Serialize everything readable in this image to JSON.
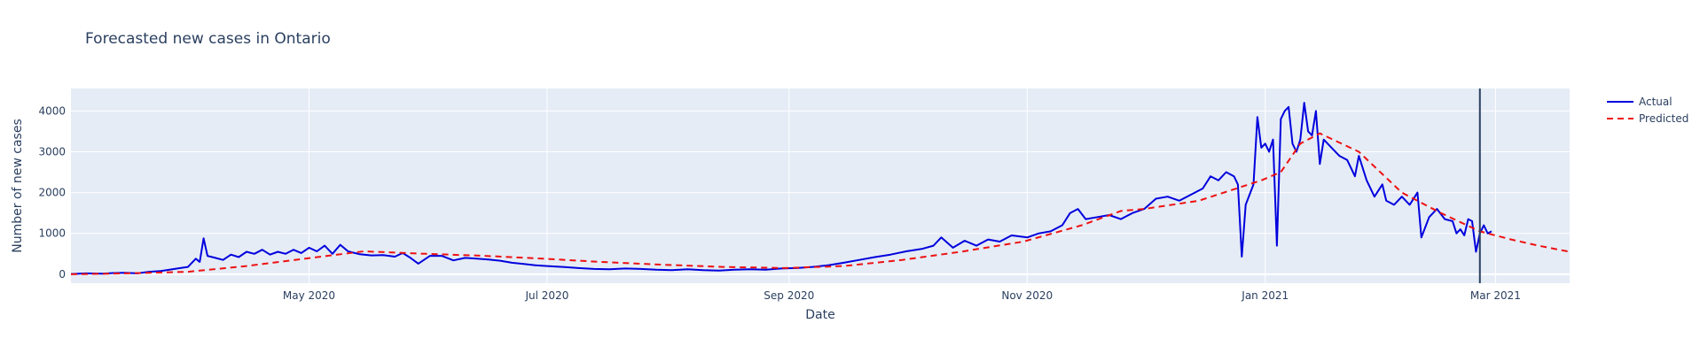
{
  "chart_data": {
    "type": "line",
    "title": "Forecasted new cases in Ontario",
    "xlabel": "Date",
    "ylabel": "Number of new cases",
    "x_range": [
      "2020-03-01",
      "2021-03-20"
    ],
    "ylim": [
      -220,
      4550
    ],
    "x_ticks": [
      {
        "date": "2020-05-01",
        "label": "May 2020"
      },
      {
        "date": "2020-07-01",
        "label": "Jul 2020"
      },
      {
        "date": "2020-09-01",
        "label": "Sep 2020"
      },
      {
        "date": "2020-11-01",
        "label": "Nov 2020"
      },
      {
        "date": "2021-01-01",
        "label": "Jan 2021"
      },
      {
        "date": "2021-03-01",
        "label": "Mar 2021"
      }
    ],
    "y_ticks": [
      0,
      1000,
      2000,
      3000,
      4000
    ],
    "grid": true,
    "legend_position": "top-right",
    "forecast_start": "2021-02-25",
    "series": [
      {
        "name": "Actual",
        "color": "#0000dd",
        "style": "solid",
        "points": [
          [
            "2020-03-01",
            5
          ],
          [
            "2020-03-05",
            20
          ],
          [
            "2020-03-09",
            15
          ],
          [
            "2020-03-12",
            30
          ],
          [
            "2020-03-15",
            35
          ],
          [
            "2020-03-18",
            20
          ],
          [
            "2020-03-21",
            60
          ],
          [
            "2020-03-24",
            80
          ],
          [
            "2020-03-27",
            120
          ],
          [
            "2020-03-29",
            150
          ],
          [
            "2020-03-31",
            180
          ],
          [
            "2020-04-02",
            380
          ],
          [
            "2020-04-03",
            300
          ],
          [
            "2020-04-04",
            880
          ],
          [
            "2020-04-05",
            450
          ],
          [
            "2020-04-07",
            400
          ],
          [
            "2020-04-09",
            350
          ],
          [
            "2020-04-11",
            480
          ],
          [
            "2020-04-13",
            420
          ],
          [
            "2020-04-15",
            550
          ],
          [
            "2020-04-17",
            500
          ],
          [
            "2020-04-19",
            600
          ],
          [
            "2020-04-21",
            480
          ],
          [
            "2020-04-23",
            550
          ],
          [
            "2020-04-25",
            500
          ],
          [
            "2020-04-27",
            600
          ],
          [
            "2020-04-29",
            520
          ],
          [
            "2020-05-01",
            650
          ],
          [
            "2020-05-03",
            560
          ],
          [
            "2020-05-05",
            700
          ],
          [
            "2020-05-07",
            500
          ],
          [
            "2020-05-09",
            720
          ],
          [
            "2020-05-11",
            560
          ],
          [
            "2020-05-14",
            490
          ],
          [
            "2020-05-17",
            460
          ],
          [
            "2020-05-20",
            470
          ],
          [
            "2020-05-23",
            430
          ],
          [
            "2020-05-25",
            520
          ],
          [
            "2020-05-27",
            400
          ],
          [
            "2020-05-29",
            260
          ],
          [
            "2020-06-01",
            450
          ],
          [
            "2020-06-04",
            450
          ],
          [
            "2020-06-07",
            340
          ],
          [
            "2020-06-10",
            400
          ],
          [
            "2020-06-13",
            380
          ],
          [
            "2020-06-16",
            360
          ],
          [
            "2020-06-19",
            330
          ],
          [
            "2020-06-22",
            280
          ],
          [
            "2020-06-25",
            250
          ],
          [
            "2020-06-28",
            220
          ],
          [
            "2020-07-01",
            200
          ],
          [
            "2020-07-05",
            180
          ],
          [
            "2020-07-09",
            150
          ],
          [
            "2020-07-13",
            130
          ],
          [
            "2020-07-17",
            120
          ],
          [
            "2020-07-21",
            140
          ],
          [
            "2020-07-25",
            130
          ],
          [
            "2020-07-29",
            110
          ],
          [
            "2020-08-02",
            100
          ],
          [
            "2020-08-06",
            120
          ],
          [
            "2020-08-10",
            100
          ],
          [
            "2020-08-14",
            90
          ],
          [
            "2020-08-18",
            110
          ],
          [
            "2020-08-22",
            120
          ],
          [
            "2020-08-26",
            110
          ],
          [
            "2020-08-30",
            140
          ],
          [
            "2020-09-03",
            150
          ],
          [
            "2020-09-07",
            180
          ],
          [
            "2020-09-11",
            220
          ],
          [
            "2020-09-15",
            280
          ],
          [
            "2020-09-19",
            350
          ],
          [
            "2020-09-23",
            420
          ],
          [
            "2020-09-27",
            480
          ],
          [
            "2020-10-01",
            560
          ],
          [
            "2020-10-05",
            620
          ],
          [
            "2020-10-08",
            700
          ],
          [
            "2020-10-10",
            900
          ],
          [
            "2020-10-13",
            650
          ],
          [
            "2020-10-16",
            820
          ],
          [
            "2020-10-19",
            700
          ],
          [
            "2020-10-22",
            850
          ],
          [
            "2020-10-25",
            800
          ],
          [
            "2020-10-28",
            950
          ],
          [
            "2020-11-01",
            900
          ],
          [
            "2020-11-04",
            1000
          ],
          [
            "2020-11-07",
            1050
          ],
          [
            "2020-11-10",
            1200
          ],
          [
            "2020-11-12",
            1500
          ],
          [
            "2020-11-14",
            1600
          ],
          [
            "2020-11-16",
            1350
          ],
          [
            "2020-11-19",
            1400
          ],
          [
            "2020-11-22",
            1450
          ],
          [
            "2020-11-25",
            1350
          ],
          [
            "2020-11-28",
            1500
          ],
          [
            "2020-12-01",
            1600
          ],
          [
            "2020-12-04",
            1850
          ],
          [
            "2020-12-07",
            1900
          ],
          [
            "2020-12-10",
            1800
          ],
          [
            "2020-12-13",
            1950
          ],
          [
            "2020-12-16",
            2100
          ],
          [
            "2020-12-18",
            2400
          ],
          [
            "2020-12-20",
            2300
          ],
          [
            "2020-12-22",
            2500
          ],
          [
            "2020-12-24",
            2400
          ],
          [
            "2020-12-25",
            2200
          ],
          [
            "2020-12-26",
            430
          ],
          [
            "2020-12-27",
            1700
          ],
          [
            "2020-12-29",
            2200
          ],
          [
            "2020-12-30",
            3850
          ],
          [
            "2020-12-31",
            3100
          ],
          [
            "2021-01-01",
            3200
          ],
          [
            "2021-01-02",
            3000
          ],
          [
            "2021-01-03",
            3300
          ],
          [
            "2021-01-04",
            700
          ],
          [
            "2021-01-05",
            3800
          ],
          [
            "2021-01-06",
            4000
          ],
          [
            "2021-01-07",
            4100
          ],
          [
            "2021-01-08",
            3200
          ],
          [
            "2021-01-09",
            3000
          ],
          [
            "2021-01-10",
            3300
          ],
          [
            "2021-01-11",
            4200
          ],
          [
            "2021-01-12",
            3500
          ],
          [
            "2021-01-13",
            3400
          ],
          [
            "2021-01-14",
            4000
          ],
          [
            "2021-01-15",
            2700
          ],
          [
            "2021-01-16",
            3300
          ],
          [
            "2021-01-18",
            3100
          ],
          [
            "2021-01-20",
            2900
          ],
          [
            "2021-01-22",
            2800
          ],
          [
            "2021-01-24",
            2400
          ],
          [
            "2021-01-25",
            2900
          ],
          [
            "2021-01-27",
            2300
          ],
          [
            "2021-01-29",
            1900
          ],
          [
            "2021-01-31",
            2200
          ],
          [
            "2021-02-01",
            1800
          ],
          [
            "2021-02-03",
            1700
          ],
          [
            "2021-02-05",
            1900
          ],
          [
            "2021-02-07",
            1700
          ],
          [
            "2021-02-09",
            2000
          ],
          [
            "2021-02-10",
            900
          ],
          [
            "2021-02-12",
            1400
          ],
          [
            "2021-02-14",
            1600
          ],
          [
            "2021-02-16",
            1350
          ],
          [
            "2021-02-18",
            1300
          ],
          [
            "2021-02-19",
            1000
          ],
          [
            "2021-02-20",
            1100
          ],
          [
            "2021-02-21",
            950
          ],
          [
            "2021-02-22",
            1350
          ],
          [
            "2021-02-23",
            1300
          ],
          [
            "2021-02-24",
            550
          ],
          [
            "2021-02-25",
            1000
          ],
          [
            "2021-02-26",
            1200
          ],
          [
            "2021-02-27",
            1000
          ],
          [
            "2021-02-28",
            1050
          ]
        ]
      },
      {
        "name": "Predicted",
        "color": "#ee1111",
        "style": "dashed",
        "points": [
          [
            "2020-03-01",
            0
          ],
          [
            "2020-03-15",
            20
          ],
          [
            "2020-03-31",
            60
          ],
          [
            "2020-04-15",
            200
          ],
          [
            "2020-04-30",
            380
          ],
          [
            "2020-05-15",
            560
          ],
          [
            "2020-05-31",
            500
          ],
          [
            "2020-06-15",
            450
          ],
          [
            "2020-06-30",
            380
          ],
          [
            "2020-07-15",
            300
          ],
          [
            "2020-07-31",
            230
          ],
          [
            "2020-08-15",
            180
          ],
          [
            "2020-08-31",
            150
          ],
          [
            "2020-09-15",
            200
          ],
          [
            "2020-09-30",
            350
          ],
          [
            "2020-10-15",
            550
          ],
          [
            "2020-10-31",
            800
          ],
          [
            "2020-11-15",
            1200
          ],
          [
            "2020-11-25",
            1550
          ],
          [
            "2020-12-01",
            1600
          ],
          [
            "2020-12-15",
            1800
          ],
          [
            "2020-12-31",
            2300
          ],
          [
            "2021-01-05",
            2500
          ],
          [
            "2021-01-10",
            3200
          ],
          [
            "2021-01-15",
            3450
          ],
          [
            "2021-01-25",
            3000
          ],
          [
            "2021-02-05",
            2000
          ],
          [
            "2021-02-15",
            1500
          ],
          [
            "2021-02-25",
            1050
          ],
          [
            "2021-03-05",
            850
          ],
          [
            "2021-03-12",
            700
          ],
          [
            "2021-03-20",
            550
          ]
        ]
      }
    ]
  }
}
